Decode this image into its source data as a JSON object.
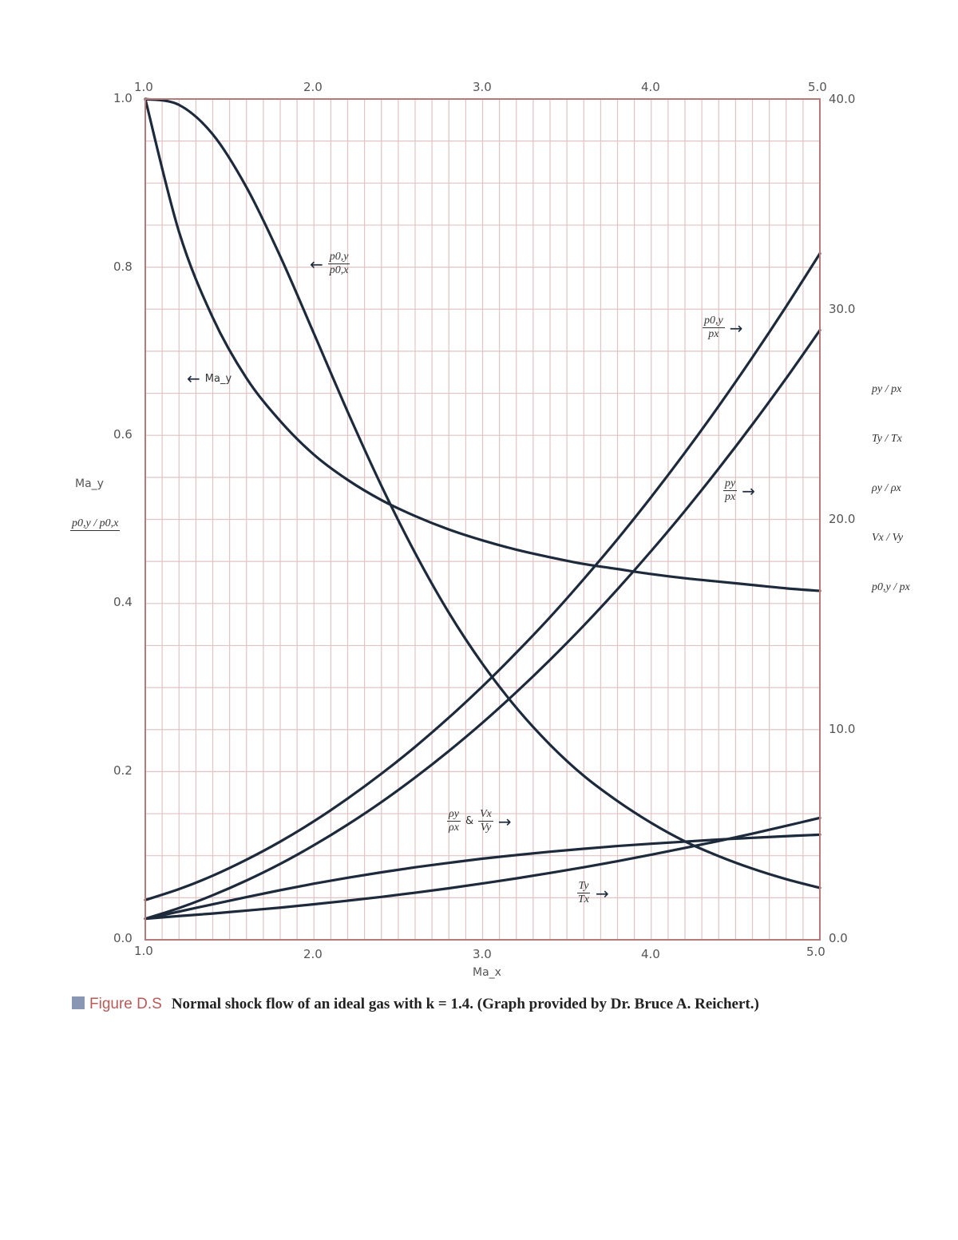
{
  "chart_data": {
    "type": "line",
    "xlabel": "Ma_x",
    "x_ticks": [
      "1.0",
      "2.0",
      "3.0",
      "4.0",
      "5.0"
    ],
    "xlim": [
      1.0,
      5.0
    ],
    "left_axis": {
      "labels": [
        "Ma_y",
        "p0,y / p0,x"
      ],
      "ylim": [
        0.0,
        1.0
      ],
      "ticks": [
        "0.0",
        "0.2",
        "0.4",
        "0.6",
        "0.8",
        "1.0"
      ]
    },
    "right_axis": {
      "labels": [
        "py / px",
        "Ty / Tx",
        "ρy / ρx",
        "Vx / Vy",
        "p0,y / px"
      ],
      "ylim": [
        0.0,
        40.0
      ],
      "ticks": [
        "0.0",
        "10.0",
        "20.0",
        "30.0",
        "40.0"
      ]
    },
    "grid": true,
    "x": [
      1.0,
      1.2,
      1.4,
      1.6,
      1.8,
      2.0,
      2.2,
      2.4,
      2.6,
      2.8,
      3.0,
      3.2,
      3.4,
      3.6,
      3.8,
      4.0,
      4.2,
      4.4,
      4.6,
      4.8,
      5.0
    ],
    "series": [
      {
        "name": "Ma_y",
        "axis": "left",
        "values": [
          1.0,
          0.842,
          0.74,
          0.668,
          0.617,
          0.577,
          0.547,
          0.523,
          0.504,
          0.488,
          0.475,
          0.464,
          0.455,
          0.447,
          0.441,
          0.435,
          0.43,
          0.426,
          0.422,
          0.418,
          0.415
        ]
      },
      {
        "name": "p0,y / p0,x",
        "axis": "left",
        "values": [
          1.0,
          0.993,
          0.958,
          0.895,
          0.813,
          0.721,
          0.628,
          0.54,
          0.46,
          0.389,
          0.328,
          0.276,
          0.232,
          0.195,
          0.165,
          0.139,
          0.117,
          0.0995,
          0.0846,
          0.0721,
          0.0617
        ]
      },
      {
        "name": "p0,y / px",
        "axis": "right",
        "values": [
          1.89,
          2.41,
          3.05,
          3.81,
          4.67,
          5.64,
          6.72,
          7.9,
          9.18,
          10.57,
          12.06,
          13.66,
          15.35,
          17.16,
          19.06,
          21.07,
          23.18,
          25.39,
          27.71,
          30.13,
          32.65
        ]
      },
      {
        "name": "py / px",
        "axis": "right",
        "values": [
          1.0,
          1.51,
          2.12,
          2.82,
          3.61,
          4.5,
          5.48,
          6.55,
          7.72,
          8.98,
          10.33,
          11.78,
          13.32,
          14.95,
          16.68,
          18.5,
          20.41,
          22.42,
          24.52,
          26.71,
          29.0
        ]
      },
      {
        "name": "ρy / ρx & Vx / Vy",
        "axis": "right",
        "values": [
          1.0,
          1.34,
          1.69,
          2.03,
          2.36,
          2.67,
          2.95,
          3.21,
          3.45,
          3.66,
          3.86,
          4.03,
          4.19,
          4.33,
          4.46,
          4.57,
          4.67,
          4.77,
          4.85,
          4.93,
          5.0
        ]
      },
      {
        "name": "Ty / Tx",
        "axis": "right",
        "values": [
          1.0,
          1.13,
          1.25,
          1.39,
          1.53,
          1.69,
          1.86,
          2.04,
          2.24,
          2.45,
          2.68,
          2.92,
          3.18,
          3.45,
          3.74,
          4.05,
          4.37,
          4.7,
          5.05,
          5.42,
          5.8
        ]
      }
    ],
    "annotations": {
      "p0y_p0x": {
        "num": "p0,y",
        "den": "p0,x"
      },
      "may": "Ma_y",
      "p0y_px": {
        "num": "p0,y",
        "den": "px"
      },
      "py_px": {
        "num": "py",
        "den": "px"
      },
      "rho": {
        "num": "ρy",
        "den": "ρx",
        "amp": "&",
        "num2": "Vx",
        "den2": "Vy"
      },
      "t": {
        "num": "Ty",
        "den": "Tx"
      }
    },
    "colors": {
      "curve": "#1c2a3c",
      "grid": "#e2c4c4",
      "frame": "#b77a7a"
    }
  },
  "caption": {
    "figure": "Figure D.S",
    "text": "Normal shock flow of an ideal gas with k = 1.4. (Graph provided by Dr. Bruce A. Reichert.)"
  }
}
